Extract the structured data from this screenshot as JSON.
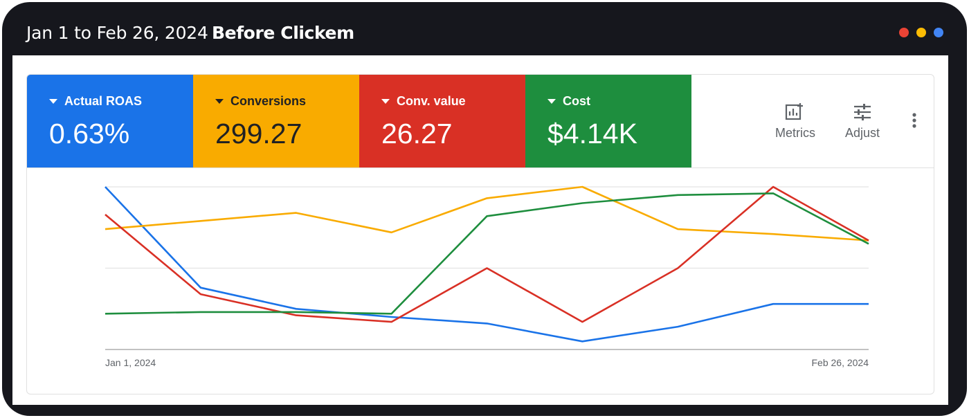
{
  "window": {
    "title_date": "Jan 1 to Feb 26, 2024",
    "title_name": "Before Clickem",
    "dots": [
      "#ea4335",
      "#fbbc04",
      "#4285f4"
    ]
  },
  "metrics": [
    {
      "label": "Actual ROAS",
      "value": "0.63%",
      "color": "#1a73e8"
    },
    {
      "label": "Conversions",
      "value": "299.27",
      "color": "#f9ab00"
    },
    {
      "label": "Conv. value",
      "value": "26.27",
      "color": "#d93025"
    },
    {
      "label": "Cost",
      "value": "$4.14K",
      "color": "#1e8e3e"
    }
  ],
  "tools": {
    "metrics_label": "Metrics",
    "adjust_label": "Adjust",
    "more_icon": "more-vert-icon"
  },
  "chart_data": {
    "type": "line",
    "x": [
      "Jan 1, 2024",
      "",
      "",
      "",
      "",
      "",
      "",
      "",
      "Feb 26, 2024"
    ],
    "x_tick_labels": [
      "Jan 1, 2024",
      "Feb 26, 2024"
    ],
    "ylim": [
      0,
      1
    ],
    "grid": true,
    "series": [
      {
        "color": "#1a73e8",
        "values": [
          1.0,
          0.38,
          0.25,
          0.2,
          0.16,
          0.05,
          0.14,
          0.28,
          0.28
        ]
      },
      {
        "color": "#f9ab00",
        "values": [
          0.74,
          0.79,
          0.84,
          0.72,
          0.93,
          1.0,
          0.74,
          0.71,
          0.67
        ]
      },
      {
        "color": "#d93025",
        "values": [
          0.83,
          0.34,
          0.21,
          0.17,
          0.5,
          0.17,
          0.5,
          1.0,
          0.67
        ]
      },
      {
        "color": "#1e8e3e",
        "values": [
          0.22,
          0.23,
          0.23,
          0.22,
          0.82,
          0.9,
          0.95,
          0.96,
          0.65
        ]
      }
    ]
  }
}
